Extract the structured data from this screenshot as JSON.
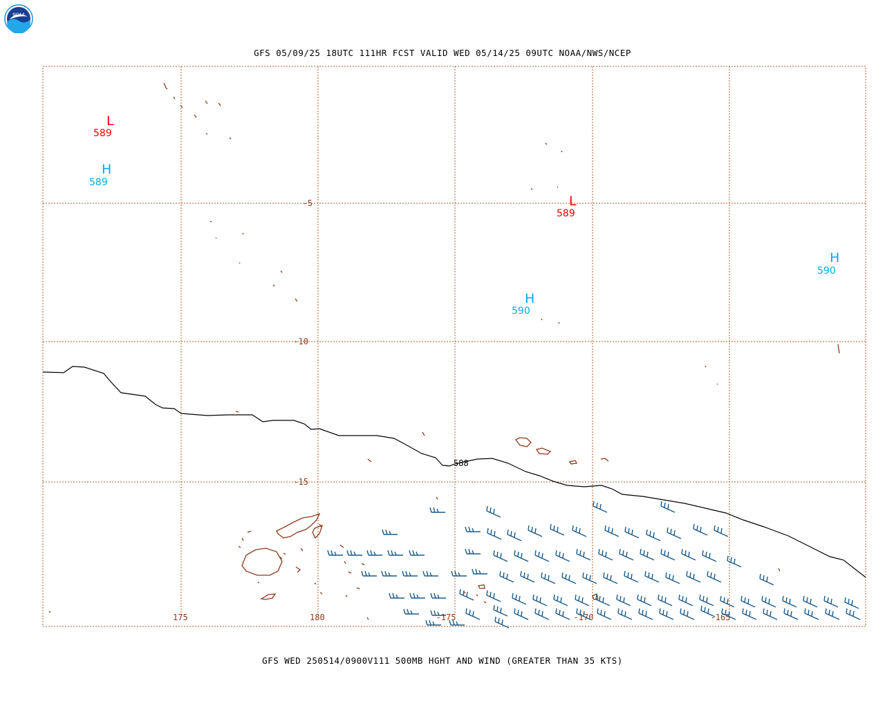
{
  "header": {
    "title": "GFS 05/09/25 18UTC 111HR FCST VALID WED 05/14/25 09UTC NOAA/NWS/NCEP",
    "footer": "GFS WED 250514/0900V111 500MB HGHT AND WIND (GREATER THAN 35 KTS)"
  },
  "logo": {
    "text": "NOAA"
  },
  "map": {
    "lon_labels": [
      "175",
      "180",
      "-175",
      "-170",
      "-165"
    ],
    "lat_labels": [
      "-5",
      "-10",
      "-15"
    ],
    "contour_label": "588",
    "centers": [
      {
        "type": "L",
        "value": "589",
        "color": "#ff0000"
      },
      {
        "type": "H",
        "value": "589",
        "color": "#00aaee"
      },
      {
        "type": "L",
        "value": "589",
        "color": "#ff0000"
      },
      {
        "type": "H",
        "value": "590",
        "color": "#00aaee"
      },
      {
        "type": "H",
        "value": "590",
        "color": "#00aaee"
      }
    ],
    "colors": {
      "grid": "#b05a2a",
      "coast": "#8b3a1a",
      "contour": "#000000",
      "wind": "#1a5a8a",
      "low": "#ff0000",
      "high": "#00aaee"
    }
  }
}
